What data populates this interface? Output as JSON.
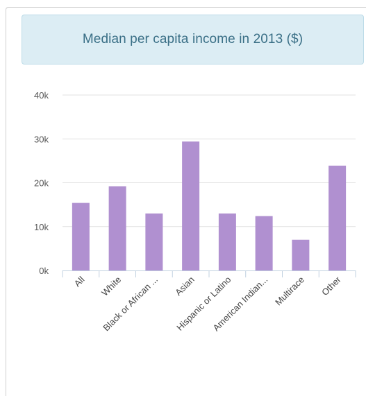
{
  "chart_data": {
    "type": "bar",
    "title": "Median per capita income in 2013 ($)",
    "categories": [
      "All",
      "White",
      "Black or African ...",
      "Asian",
      "Hispanic or Latino",
      "American Indian...",
      "Multirace",
      "Other"
    ],
    "values": [
      15400,
      19200,
      13000,
      29400,
      13000,
      12400,
      7000,
      23900
    ],
    "y_ticks": [
      "0k",
      "10k",
      "20k",
      "30k",
      "40k"
    ],
    "ylim": [
      0,
      40000
    ],
    "xlabel": "",
    "ylabel": "",
    "grid": true,
    "bar_color": "#b090d0"
  }
}
